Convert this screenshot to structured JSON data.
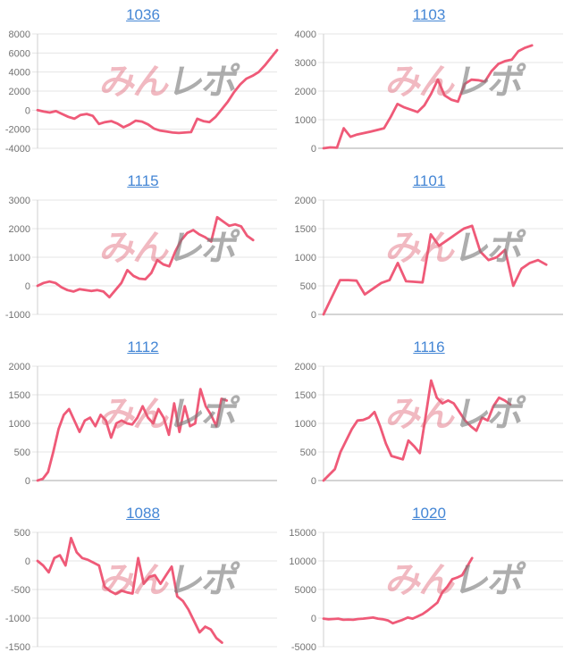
{
  "page": {
    "background": "#ffffff"
  },
  "styles": {
    "line_color": "#ef5a78",
    "grid_color": "#e4e4e4",
    "baseline_color": "#a8a8a8",
    "axis_line_color": "#cfcfcf",
    "tick_label_color": "#737373",
    "link_color": "#4486d5"
  },
  "watermark": {
    "text_pink": "みん",
    "text_gray": "レポ",
    "pink_color": "#de5a6e",
    "gray_color": "#787878"
  },
  "chart_data": [
    {
      "type": "line",
      "title": "1036",
      "ylim": [
        -4000,
        8000
      ],
      "yticks": [
        8000,
        6000,
        4000,
        2000,
        0,
        -2000,
        -4000
      ],
      "x_span": 1.0,
      "values": [
        0,
        -150,
        -250,
        -100,
        -400,
        -700,
        -900,
        -500,
        -400,
        -600,
        -1450,
        -1250,
        -1150,
        -1400,
        -1800,
        -1500,
        -1100,
        -1200,
        -1500,
        -1950,
        -2150,
        -2250,
        -2350,
        -2400,
        -2350,
        -2300,
        -900,
        -1150,
        -1250,
        -700,
        100,
        900,
        1900,
        2700,
        3300,
        3600,
        4000,
        4700,
        5500,
        6300
      ]
    },
    {
      "type": "line",
      "title": "1103",
      "ylim": [
        0,
        4000
      ],
      "yticks": [
        4000,
        3000,
        2000,
        1000,
        0
      ],
      "x_span": 0.87,
      "values": [
        0,
        30,
        20,
        700,
        400,
        480,
        530,
        580,
        640,
        700,
        1100,
        1550,
        1430,
        1350,
        1270,
        1500,
        1900,
        2400,
        1850,
        1700,
        1630,
        2250,
        2400,
        2380,
        2330,
        2700,
        2950,
        3050,
        3100,
        3400,
        3520,
        3600
      ]
    },
    {
      "type": "line",
      "title": "1115",
      "ylim": [
        -1000,
        3000
      ],
      "yticks": [
        3000,
        2000,
        1000,
        0,
        -1000
      ],
      "x_span": 0.9,
      "values": [
        0,
        100,
        150,
        100,
        -50,
        -150,
        -200,
        -120,
        -150,
        -180,
        -150,
        -200,
        -400,
        -150,
        100,
        550,
        350,
        250,
        230,
        450,
        900,
        750,
        680,
        1200,
        1600,
        1850,
        1950,
        1800,
        1700,
        1550,
        2400,
        2250,
        2100,
        2150,
        2080,
        1750,
        1600
      ]
    },
    {
      "type": "line",
      "title": "1101",
      "ylim": [
        0,
        2000
      ],
      "yticks": [
        2000,
        1500,
        1000,
        500,
        0
      ],
      "x_span": 0.93,
      "values": [
        0,
        300,
        600,
        600,
        590,
        350,
        450,
        550,
        600,
        900,
        580,
        570,
        560,
        1400,
        1200,
        1300,
        1400,
        1500,
        1550,
        1100,
        950,
        1000,
        1130,
        500,
        800,
        900,
        950,
        870
      ]
    },
    {
      "type": "line",
      "title": "1112",
      "ylim": [
        0,
        2000
      ],
      "yticks": [
        2000,
        1500,
        1000,
        500,
        0
      ],
      "x_span": 0.79,
      "values": [
        0,
        30,
        150,
        500,
        900,
        1150,
        1250,
        1050,
        850,
        1050,
        1100,
        950,
        1150,
        1050,
        750,
        1000,
        1050,
        1000,
        980,
        1100,
        1300,
        1100,
        1000,
        1250,
        1100,
        800,
        1350,
        850,
        1300,
        950,
        1000,
        1600,
        1300,
        1150,
        950,
        1430,
        1400
      ]
    },
    {
      "type": "line",
      "title": "1116",
      "ylim": [
        0,
        2000
      ],
      "yticks": [
        2000,
        1500,
        1000,
        500,
        0
      ],
      "x_span": 0.78,
      "values": [
        0,
        100,
        200,
        500,
        700,
        900,
        1050,
        1060,
        1100,
        1200,
        950,
        650,
        430,
        400,
        370,
        700,
        600,
        480,
        1100,
        1750,
        1450,
        1350,
        1400,
        1350,
        1200,
        1050,
        950,
        870,
        1100,
        1050,
        1300,
        1450,
        1400,
        1330
      ]
    },
    {
      "type": "line",
      "title": "1088",
      "ylim": [
        -1500,
        500
      ],
      "yticks": [
        500,
        0,
        -500,
        -1000,
        -1500
      ],
      "x_span": 0.77,
      "values": [
        0,
        -80,
        -200,
        50,
        100,
        -80,
        400,
        150,
        50,
        20,
        -30,
        -80,
        -450,
        -530,
        -580,
        -520,
        -550,
        -570,
        50,
        -400,
        -280,
        -250,
        -400,
        -250,
        -100,
        -620,
        -700,
        -850,
        -1050,
        -1250,
        -1150,
        -1200,
        -1350,
        -1430
      ]
    },
    {
      "type": "line",
      "title": "1020",
      "ylim": [
        -5000,
        15000
      ],
      "yticks": [
        15000,
        10000,
        5000,
        0,
        -5000
      ],
      "x_span": 0.62,
      "values": [
        -100,
        -200,
        -150,
        -100,
        -300,
        -250,
        -300,
        -150,
        -100,
        0,
        100,
        -100,
        -200,
        -400,
        -900,
        -600,
        -300,
        100,
        -100,
        300,
        700,
        1300,
        2000,
        2700,
        4500,
        5500,
        6800,
        7100,
        7500,
        9000,
        10500
      ]
    }
  ]
}
